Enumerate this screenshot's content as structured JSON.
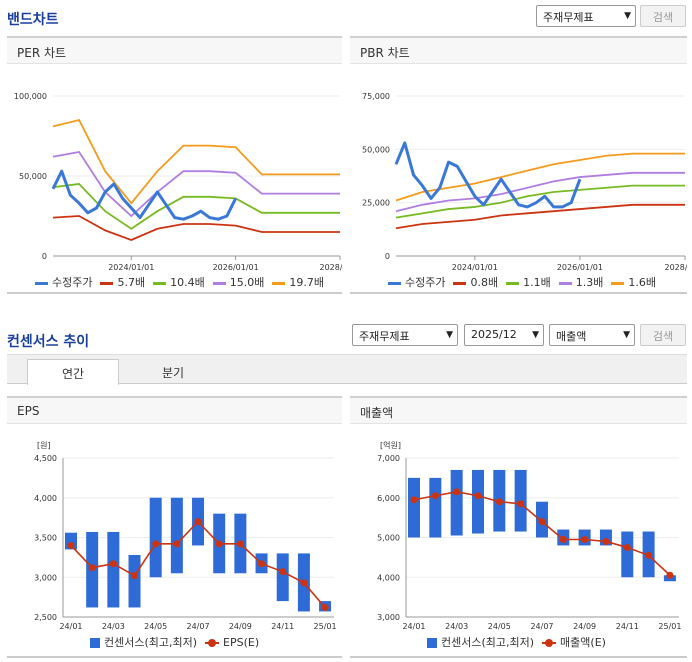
{
  "band": {
    "title": "밴드차트",
    "select_label": "주재무제표",
    "search_label": "검색"
  },
  "consensus": {
    "title": "컨센서스 추이",
    "select_statement": "주재무제표",
    "select_period": "2025/12",
    "select_item": "매출액",
    "search_label": "검색",
    "tabs": [
      "연간",
      "분기"
    ]
  },
  "colors": {
    "price": "#3a78d8",
    "band1": "#cc3311",
    "band2": "#77bb22",
    "band3": "#b07ee0",
    "band4": "#f59a1b",
    "bar": "#2f6bd6",
    "line": "#cc3311"
  },
  "chart_data": [
    {
      "type": "line",
      "title": "PER 차트",
      "xticks": [
        "2024/01/01",
        "2026/01/01",
        "2028/01/0"
      ],
      "ylim": [
        0,
        100000
      ],
      "yticks": [
        "0",
        "50,000",
        "100,000"
      ],
      "x": [
        "2022/07",
        "2023/01",
        "2023/07",
        "2024/01",
        "2024/07",
        "2025/01",
        "2025/07",
        "2026/01",
        "2026/07",
        "2027/01",
        "2027/07",
        "2028/01"
      ],
      "price": {
        "name": "수정주가",
        "x": [
          "2022/07",
          "2022/09",
          "2022/11",
          "2023/01",
          "2023/03",
          "2023/05",
          "2023/07",
          "2023/09",
          "2023/11",
          "2024/01",
          "2024/03",
          "2024/05",
          "2024/07",
          "2024/09",
          "2024/11",
          "2025/01",
          "2025/03",
          "2025/05",
          "2025/07",
          "2025/09",
          "2025/11",
          "2026/01"
        ],
        "values": [
          42000,
          53000,
          38000,
          33000,
          27000,
          30000,
          40000,
          45000,
          36000,
          30000,
          24000,
          32000,
          40000,
          32000,
          24000,
          23000,
          25000,
          28000,
          24000,
          23000,
          25000,
          36000
        ]
      },
      "series": [
        {
          "name": "5.7배",
          "values": [
            24000,
            25000,
            16000,
            10000,
            17000,
            20000,
            20000,
            19000,
            15000,
            15000,
            15000,
            15000
          ]
        },
        {
          "name": "10.4배",
          "values": [
            43000,
            45000,
            28000,
            17000,
            28000,
            37000,
            37000,
            36000,
            27000,
            27000,
            27000,
            27000
          ]
        },
        {
          "name": "15.0배",
          "values": [
            62000,
            65000,
            40000,
            25000,
            40000,
            53000,
            53000,
            52000,
            39000,
            39000,
            39000,
            39000
          ]
        },
        {
          "name": "19.7배",
          "values": [
            81000,
            85000,
            53000,
            33000,
            53000,
            69000,
            69000,
            68000,
            51000,
            51000,
            51000,
            51000
          ]
        }
      ]
    },
    {
      "type": "line",
      "title": "PBR 차트",
      "xticks": [
        "2024/01/01",
        "2026/01/01",
        "2028/01/0"
      ],
      "ylim": [
        0,
        75000
      ],
      "yticks": [
        "0",
        "25,000",
        "50,000",
        "75,000"
      ],
      "x": [
        "2022/07",
        "2023/01",
        "2023/07",
        "2024/01",
        "2024/07",
        "2025/01",
        "2025/07",
        "2026/01",
        "2026/07",
        "2027/01",
        "2027/07",
        "2028/01"
      ],
      "price": {
        "name": "수정주가",
        "x": [
          "2022/07",
          "2022/09",
          "2022/11",
          "2023/01",
          "2023/03",
          "2023/05",
          "2023/07",
          "2023/09",
          "2023/11",
          "2024/01",
          "2024/03",
          "2024/05",
          "2024/07",
          "2024/09",
          "2024/11",
          "2025/01",
          "2025/03",
          "2025/05",
          "2025/07",
          "2025/09",
          "2025/11",
          "2026/01"
        ],
        "values": [
          43000,
          53000,
          38000,
          33000,
          27000,
          32000,
          44000,
          42000,
          35000,
          28000,
          24000,
          30000,
          36000,
          30000,
          24000,
          23000,
          25000,
          28000,
          23000,
          23000,
          25000,
          36000
        ]
      },
      "series": [
        {
          "name": "0.8배",
          "values": [
            13000,
            15000,
            16000,
            17000,
            19000,
            20000,
            21000,
            22000,
            23000,
            24000,
            24000,
            24000
          ]
        },
        {
          "name": "1.1배",
          "values": [
            18000,
            20000,
            22000,
            23000,
            25000,
            28000,
            30000,
            31000,
            32000,
            33000,
            33000,
            33000
          ]
        },
        {
          "name": "1.3배",
          "values": [
            21000,
            24000,
            26000,
            27000,
            29000,
            32000,
            35000,
            37000,
            38000,
            39000,
            39000,
            39000
          ]
        },
        {
          "name": "1.6배",
          "values": [
            26000,
            30000,
            32000,
            34000,
            37000,
            40000,
            43000,
            45000,
            47000,
            48000,
            48000,
            48000
          ]
        }
      ]
    },
    {
      "type": "bar",
      "title": "EPS",
      "ylabel": "[원]",
      "ylim": [
        2500,
        4500
      ],
      "yticks": [
        "2,500",
        "3,000",
        "3,500",
        "4,000",
        "4,500"
      ],
      "xticks": [
        "24/01",
        "24/03",
        "24/05",
        "24/07",
        "24/09",
        "24/11",
        "25/01"
      ],
      "categories": [
        "24/01",
        "24/02",
        "24/03",
        "24/04",
        "24/05",
        "24/06",
        "24/07",
        "24/08",
        "24/09",
        "24/10",
        "24/11",
        "24/12",
        "25/01"
      ],
      "range_high": [
        3560,
        3570,
        3570,
        3280,
        4000,
        4000,
        4000,
        3800,
        3800,
        3300,
        3300,
        3300,
        2700
      ],
      "range_low": [
        3350,
        2620,
        2620,
        2620,
        3000,
        3050,
        3400,
        3050,
        3050,
        3050,
        2700,
        2570,
        2570
      ],
      "values": [
        3400,
        3120,
        3170,
        3020,
        3420,
        3420,
        3700,
        3420,
        3420,
        3170,
        3070,
        2930,
        2620
      ],
      "legend": [
        "컨센서스(최고,최저)",
        "EPS(E)"
      ]
    },
    {
      "type": "bar",
      "title": "매출액",
      "ylabel": "[억원]",
      "ylim": [
        3000,
        7000
      ],
      "yticks": [
        "3,000",
        "4,000",
        "5,000",
        "6,000",
        "7,000"
      ],
      "xticks": [
        "24/01",
        "24/03",
        "24/05",
        "24/07",
        "24/09",
        "24/11",
        "25/01"
      ],
      "categories": [
        "24/01",
        "24/02",
        "24/03",
        "24/04",
        "24/05",
        "24/06",
        "24/07",
        "24/08",
        "24/09",
        "24/10",
        "24/11",
        "24/12",
        "25/01"
      ],
      "range_high": [
        6500,
        6500,
        6700,
        6700,
        6700,
        6700,
        5900,
        5200,
        5200,
        5200,
        5150,
        5150,
        4050
      ],
      "range_low": [
        5000,
        5000,
        5050,
        5100,
        5150,
        5150,
        5000,
        4800,
        4800,
        4800,
        4000,
        4000,
        3900
      ],
      "values": [
        5950,
        6050,
        6150,
        6050,
        5900,
        5850,
        5400,
        4950,
        4950,
        4900,
        4750,
        4550,
        4050
      ],
      "legend": [
        "컨센서스(최고,최저)",
        "매출액(E)"
      ]
    }
  ]
}
